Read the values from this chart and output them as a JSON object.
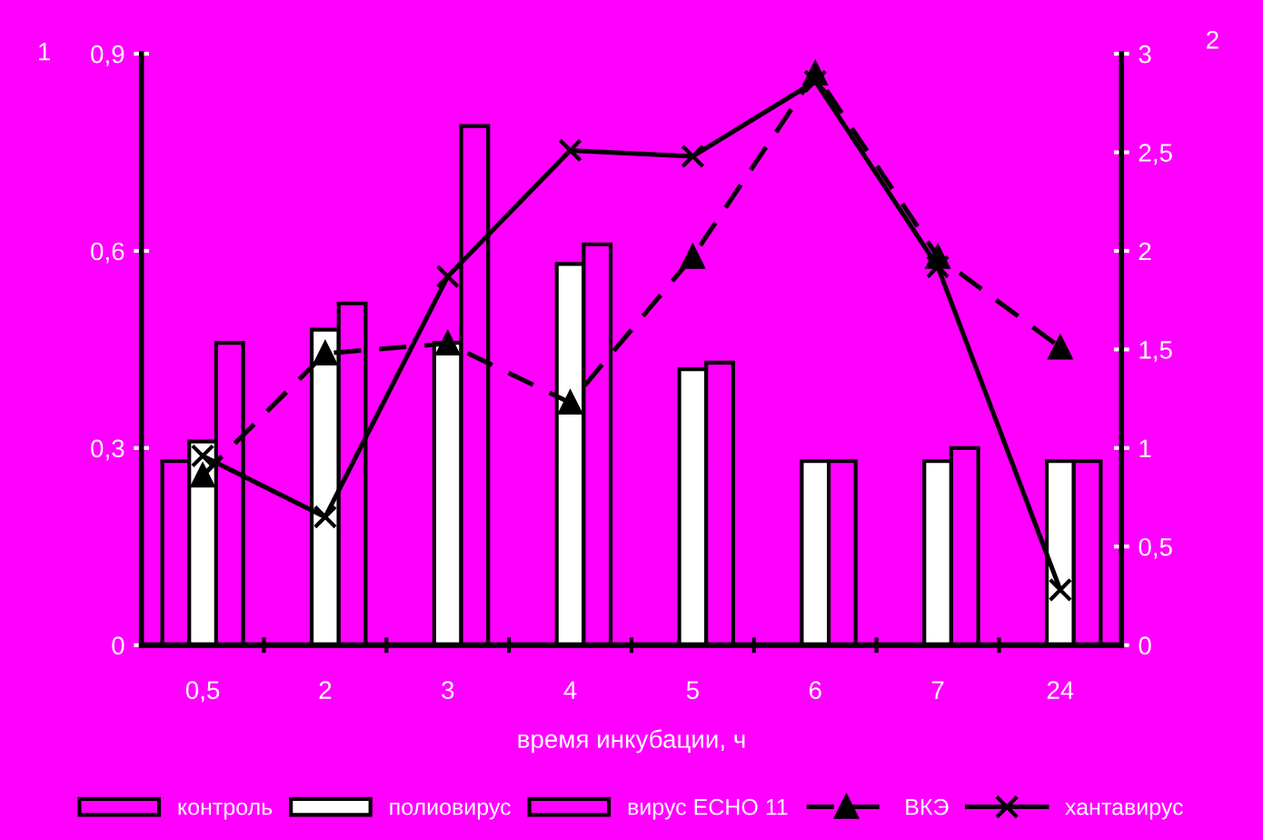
{
  "chart_data": {
    "type": "bar",
    "xlabel": "время инкубации, ч",
    "ylabel": "1",
    "y2label": "2",
    "categories": [
      "0,5",
      "2",
      "3",
      "4",
      "5",
      "6",
      "7",
      "24"
    ],
    "series": [
      {
        "name": "контроль",
        "color": "#ff00ff",
        "values": [
          0.28,
          null,
          null,
          null,
          null,
          null,
          null,
          null
        ]
      },
      {
        "name": "полиовирус",
        "color": "#ffffff",
        "values": [
          0.31,
          0.48,
          0.46,
          0.58,
          0.42,
          0.28,
          0.28,
          0.28
        ]
      },
      {
        "name": "вирус ECHO 11",
        "color": "#ff00ff",
        "values": [
          0.46,
          0.52,
          0.79,
          0.61,
          0.43,
          0.28,
          0.3,
          0.28
        ]
      },
      {
        "name": "ВКЭ",
        "type": "line",
        "axis": "y2",
        "color": "#000000",
        "marker": "triangle",
        "line_style": "dashed",
        "values": [
          0.86,
          1.48,
          1.53,
          1.23,
          1.97,
          2.9,
          1.97,
          1.51
        ]
      },
      {
        "name": "хантавирус",
        "type": "line",
        "axis": "y2",
        "color": "#000000",
        "marker": "cross",
        "line_style": "solid",
        "values": [
          0.96,
          0.65,
          1.87,
          2.51,
          2.48,
          2.86,
          1.92,
          0.28
        ]
      }
    ],
    "ylim": [
      0,
      0.9
    ],
    "yticks": [
      0,
      {
        "value": 0.3,
        "label": "0,3"
      },
      {
        "value": 0.6,
        "label": "0,6"
      },
      {
        "value": 0.9,
        "label": "0,9"
      }
    ],
    "y2lim": [
      0,
      3
    ],
    "y2ticks": [
      0,
      {
        "value": 0.5,
        "label": "0,5"
      },
      1,
      {
        "value": 1.5,
        "label": "1,5"
      },
      2,
      {
        "value": 2.5,
        "label": "2,5"
      },
      3
    ],
    "grid": false,
    "legend": "bottom"
  }
}
